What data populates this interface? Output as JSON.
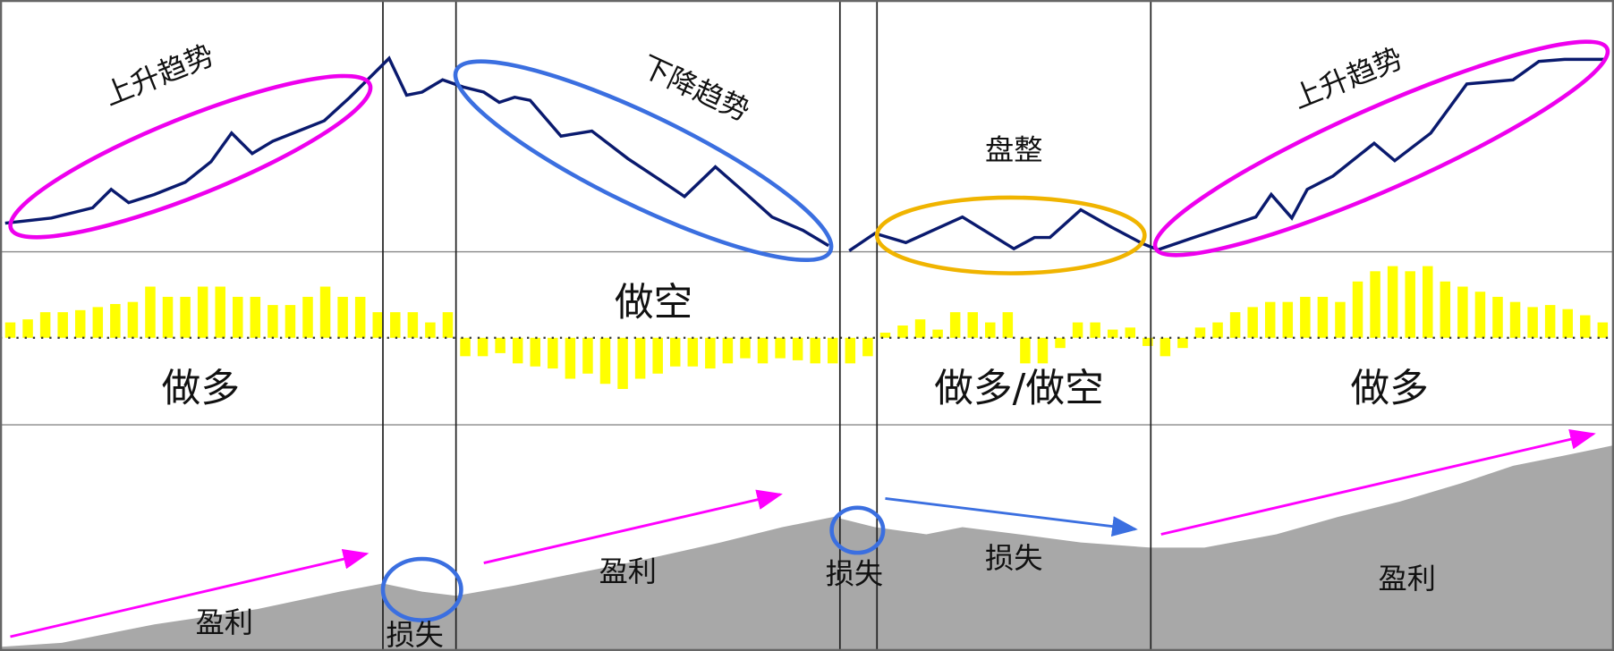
{
  "trends": [
    "上升趋势",
    "下降趋势",
    "盘整",
    "上升趋势"
  ],
  "positions": [
    "做多",
    "做空",
    "做多/做空",
    "做多"
  ],
  "outcomes": [
    "盈利",
    "损失",
    "盈利",
    "损失",
    "损失",
    "盈利"
  ]
}
